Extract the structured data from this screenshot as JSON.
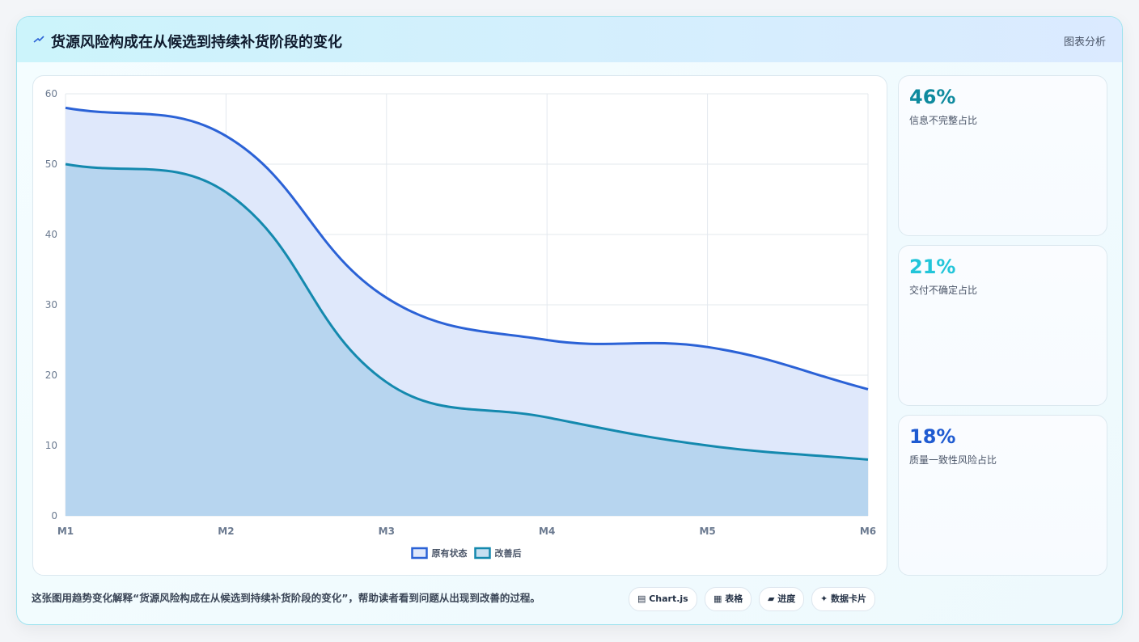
{
  "header": {
    "title": "货源风险构成在从候选到持续补货阶段的变化",
    "tag": "图表分析"
  },
  "chart_data": {
    "type": "area",
    "categories": [
      "M1",
      "M2",
      "M3",
      "M4",
      "M5",
      "M6"
    ],
    "series": [
      {
        "name": "原有状态",
        "color": "#2b62d6",
        "fill": "#dfe8fb",
        "values": [
          58,
          54,
          31,
          25,
          24,
          18
        ]
      },
      {
        "name": "改善后",
        "color": "#1489ae",
        "fill": "rgba(150,196,230,0.55)",
        "values": [
          50,
          46,
          19,
          14,
          10,
          8
        ]
      }
    ],
    "ylim": [
      0,
      60
    ],
    "yticks": [
      0,
      10,
      20,
      30,
      40,
      50,
      60
    ],
    "grid": true,
    "legend": "bottom"
  },
  "stats": [
    {
      "value": "46%",
      "label": "信息不完整占比",
      "color": "#0e8a9e"
    },
    {
      "value": "21%",
      "label": "交付不确定占比",
      "color": "#22c5d9"
    },
    {
      "value": "18%",
      "label": "质量一致性风险占比",
      "color": "#1f5bd1"
    }
  ],
  "footer": {
    "note": "这张图用趋势变化解释“货源风险构成在从候选到持续补货阶段的变化”，帮助读者看到问题从出现到改善的过程。",
    "chips": [
      "▤ Chart.js",
      "▦ 表格",
      "▰ 进度",
      "✦ 数据卡片"
    ]
  }
}
